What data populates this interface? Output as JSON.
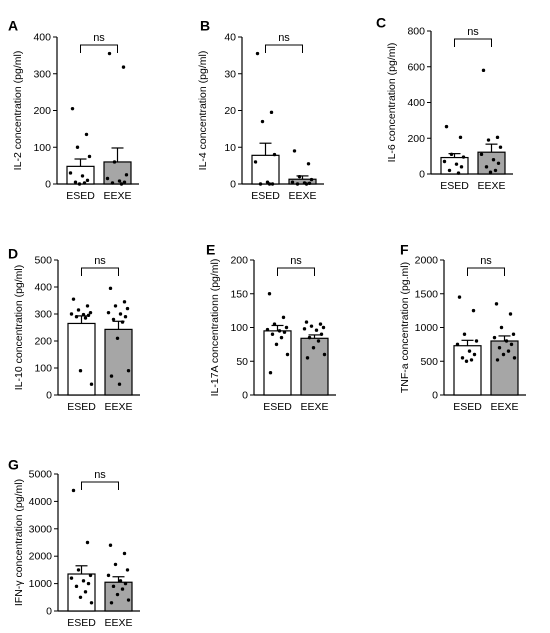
{
  "chart_data": [
    {
      "panel": "A",
      "type": "bar",
      "ylabel": "IL-2 concentration (pg/ml)",
      "categories": [
        "ESED",
        "EEXE"
      ],
      "ylim": [
        0,
        400
      ],
      "yticks": [
        0,
        100,
        200,
        300,
        400
      ],
      "values": [
        48,
        60
      ],
      "sem": [
        20,
        38
      ],
      "points": [
        [
          205,
          135,
          100,
          75,
          30,
          22,
          10,
          5,
          3,
          0
        ],
        [
          355,
          318,
          60,
          25,
          15,
          8,
          5,
          3,
          0
        ]
      ],
      "significance": "ns"
    },
    {
      "panel": "B",
      "type": "bar",
      "ylabel": "IL-4 concentration (pg/ml)",
      "categories": [
        "ESED",
        "EEXE"
      ],
      "ylim": [
        0,
        40
      ],
      "yticks": [
        0,
        10,
        20,
        30,
        40
      ],
      "values": [
        7.8,
        1.3
      ],
      "sem": [
        3.3,
        0.9
      ],
      "points": [
        [
          35.5,
          19.5,
          17,
          8,
          6,
          0.5,
          0,
          0,
          0
        ],
        [
          9,
          5.5,
          2,
          1.2,
          0.5,
          0.3,
          0.2,
          0,
          0
        ]
      ],
      "significance": "ns"
    },
    {
      "panel": "C",
      "type": "bar",
      "ylabel": "IL-6 concentration (pg/ml)",
      "categories": [
        "ESED",
        "EEXE"
      ],
      "ylim": [
        0,
        800
      ],
      "yticks": [
        0,
        200,
        400,
        600,
        800
      ],
      "values": [
        92,
        122
      ],
      "sem": [
        22,
        45
      ],
      "points": [
        [
          265,
          205,
          110,
          95,
          70,
          55,
          40,
          20,
          5
        ],
        [
          580,
          205,
          190,
          150,
          110,
          80,
          60,
          40,
          20,
          10
        ]
      ],
      "significance": "ns"
    },
    {
      "panel": "D",
      "type": "bar",
      "ylabel": "IL-10 concentration (pg/ml)",
      "categories": [
        "ESED",
        "EEXE"
      ],
      "ylim": [
        0,
        500
      ],
      "yticks": [
        0,
        100,
        200,
        300,
        400,
        500
      ],
      "values": [
        265,
        243
      ],
      "sem": [
        28,
        30
      ],
      "points": [
        [
          355,
          330,
          315,
          305,
          300,
          298,
          295,
          290,
          285,
          90,
          40
        ],
        [
          395,
          345,
          330,
          320,
          305,
          300,
          290,
          280,
          270,
          210,
          90,
          70,
          40
        ]
      ],
      "significance": "ns"
    },
    {
      "panel": "E",
      "type": "bar",
      "ylabel": "IL-17A concentrationn (pg/ml)",
      "categories": [
        "ESED",
        "EEXE"
      ],
      "ylim": [
        0,
        200
      ],
      "yticks": [
        0,
        50,
        100,
        150,
        200
      ],
      "values": [
        95,
        84
      ],
      "sem": [
        8,
        5
      ],
      "points": [
        [
          150,
          115,
          105,
          100,
          97,
          95,
          93,
          90,
          85,
          75,
          60,
          33
        ],
        [
          108,
          105,
          102,
          100,
          98,
          96,
          90,
          85,
          80,
          70,
          60,
          55
        ]
      ],
      "significance": "ns"
    },
    {
      "panel": "F",
      "type": "bar",
      "ylabel": "TNF-a concentration (pg.ml)",
      "categories": [
        "ESED",
        "EEXE"
      ],
      "ylim": [
        0,
        2000
      ],
      "yticks": [
        0,
        500,
        1000,
        1500,
        2000
      ],
      "values": [
        730,
        800
      ],
      "sem": [
        80,
        75
      ],
      "points": [
        [
          1450,
          1250,
          900,
          800,
          750,
          650,
          600,
          550,
          520,
          500
        ],
        [
          1350,
          1200,
          1000,
          900,
          850,
          800,
          750,
          700,
          650,
          600,
          550,
          520
        ]
      ],
      "significance": "ns"
    },
    {
      "panel": "G",
      "type": "bar",
      "ylabel": "IFN-γ concentration (pg/ml)",
      "categories": [
        "ESED",
        "EEXE"
      ],
      "ylim": [
        0,
        5000
      ],
      "yticks": [
        0,
        1000,
        2000,
        3000,
        4000,
        5000
      ],
      "values": [
        1350,
        1050
      ],
      "sem": [
        300,
        200
      ],
      "points": [
        [
          4400,
          2500,
          1500,
          1300,
          1200,
          1100,
          1000,
          900,
          700,
          500,
          300
        ],
        [
          2400,
          2100,
          1700,
          1500,
          1300,
          1100,
          1000,
          900,
          800,
          600,
          400,
          300
        ]
      ],
      "significance": "ns"
    }
  ],
  "colors": {
    "ESED": "#ffffff",
    "EEXE": "#a6a6a6",
    "stroke": "#000000"
  }
}
